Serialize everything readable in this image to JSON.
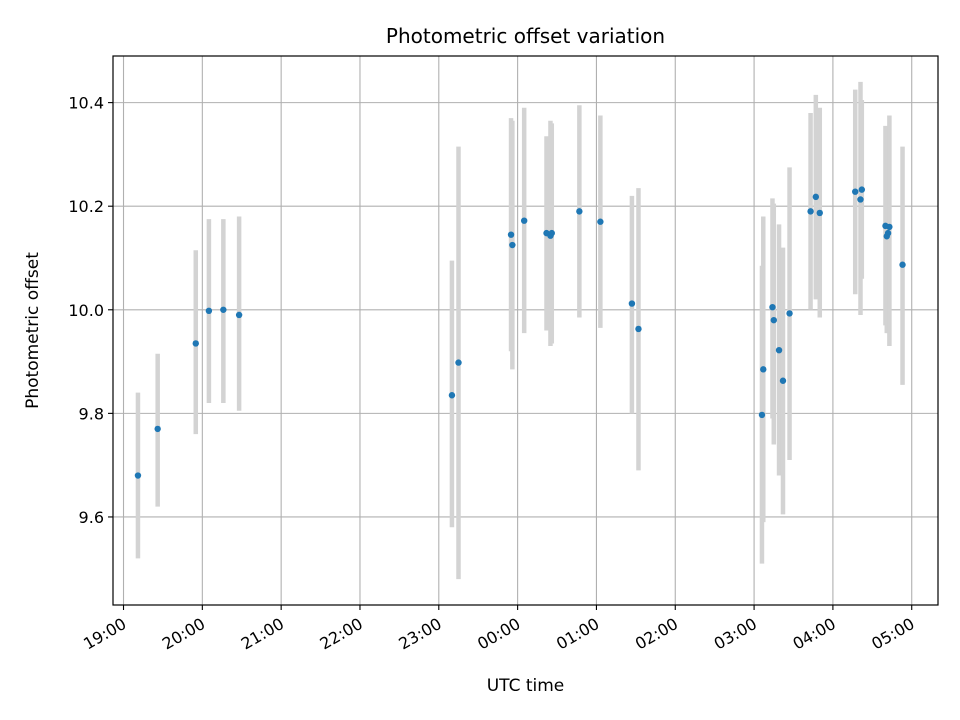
{
  "chart_data": {
    "type": "scatter",
    "title": "Photometric offset variation",
    "xlabel": "UTC time",
    "ylabel": "Photometric offset",
    "x_unit": "hours after 19:00 UTC",
    "xlim": [
      "18:52",
      "05:20"
    ],
    "ylim": [
      9.43,
      10.49
    ],
    "x_ticks": [
      "19:00",
      "20:00",
      "21:00",
      "22:00",
      "23:00",
      "00:00",
      "01:00",
      "02:00",
      "03:00",
      "04:00",
      "05:00"
    ],
    "y_ticks": [
      "9.6",
      "9.8",
      "10.0",
      "10.2",
      "10.4"
    ],
    "y_tick_values": [
      9.6,
      9.8,
      10.0,
      10.2,
      10.4
    ],
    "grid": true,
    "colors": {
      "points": "#1f77b4",
      "errorbars": "#d3d3d3",
      "grid": "#b0b0b0",
      "axes": "#000000"
    },
    "points": [
      {
        "x": "19:11",
        "y": 9.68,
        "lo": 9.52,
        "hi": 9.84
      },
      {
        "x": "19:26",
        "y": 9.77,
        "lo": 9.62,
        "hi": 9.915
      },
      {
        "x": "19:55",
        "y": 9.935,
        "lo": 9.76,
        "hi": 10.115
      },
      {
        "x": "20:05",
        "y": 9.998,
        "lo": 9.82,
        "hi": 10.175
      },
      {
        "x": "20:16",
        "y": 10.0,
        "lo": 9.82,
        "hi": 10.175
      },
      {
        "x": "20:28",
        "y": 9.99,
        "lo": 9.805,
        "hi": 10.18
      },
      {
        "x": "23:10",
        "y": 9.835,
        "lo": 9.58,
        "hi": 10.095
      },
      {
        "x": "23:15",
        "y": 9.898,
        "lo": 9.48,
        "hi": 10.315
      },
      {
        "x": "23:55",
        "y": 10.145,
        "lo": 9.92,
        "hi": 10.37
      },
      {
        "x": "23:56",
        "y": 10.125,
        "lo": 9.885,
        "hi": 10.365
      },
      {
        "x": "00:05",
        "y": 10.172,
        "lo": 9.955,
        "hi": 10.39
      },
      {
        "x": "00:22",
        "y": 10.148,
        "lo": 9.96,
        "hi": 10.335
      },
      {
        "x": "00:25",
        "y": 10.143,
        "lo": 9.93,
        "hi": 10.365
      },
      {
        "x": "00:26",
        "y": 10.148,
        "lo": 9.935,
        "hi": 10.36
      },
      {
        "x": "00:47",
        "y": 10.19,
        "lo": 9.985,
        "hi": 10.395
      },
      {
        "x": "01:03",
        "y": 10.17,
        "lo": 9.965,
        "hi": 10.375
      },
      {
        "x": "01:27",
        "y": 10.012,
        "lo": 9.8,
        "hi": 10.22
      },
      {
        "x": "01:32",
        "y": 9.963,
        "lo": 9.69,
        "hi": 10.235
      },
      {
        "x": "03:06",
        "y": 9.797,
        "lo": 9.51,
        "hi": 10.085
      },
      {
        "x": "03:07",
        "y": 9.885,
        "lo": 9.59,
        "hi": 10.18
      },
      {
        "x": "03:14",
        "y": 10.005,
        "lo": 9.79,
        "hi": 10.215
      },
      {
        "x": "03:15",
        "y": 9.98,
        "lo": 9.74,
        "hi": 10.205
      },
      {
        "x": "03:19",
        "y": 9.922,
        "lo": 9.68,
        "hi": 10.165
      },
      {
        "x": "03:22",
        "y": 9.863,
        "lo": 9.605,
        "hi": 10.12
      },
      {
        "x": "03:27",
        "y": 9.993,
        "lo": 9.71,
        "hi": 10.275
      },
      {
        "x": "03:43",
        "y": 10.19,
        "lo": 10.0,
        "hi": 10.38
      },
      {
        "x": "03:47",
        "y": 10.218,
        "lo": 10.02,
        "hi": 10.415
      },
      {
        "x": "03:50",
        "y": 10.187,
        "lo": 9.985,
        "hi": 10.39
      },
      {
        "x": "04:17",
        "y": 10.228,
        "lo": 10.03,
        "hi": 10.425
      },
      {
        "x": "04:21",
        "y": 10.213,
        "lo": 9.99,
        "hi": 10.44
      },
      {
        "x": "04:22",
        "y": 10.232,
        "lo": 10.06,
        "hi": 10.405
      },
      {
        "x": "04:40",
        "y": 10.162,
        "lo": 9.97,
        "hi": 10.355
      },
      {
        "x": "04:41",
        "y": 10.142,
        "lo": 9.955,
        "hi": 10.33
      },
      {
        "x": "04:42",
        "y": 10.148,
        "lo": 9.955,
        "hi": 10.34
      },
      {
        "x": "04:43",
        "y": 10.16,
        "lo": 9.93,
        "hi": 10.375
      },
      {
        "x": "04:53",
        "y": 10.087,
        "lo": 9.855,
        "hi": 10.315
      }
    ]
  }
}
